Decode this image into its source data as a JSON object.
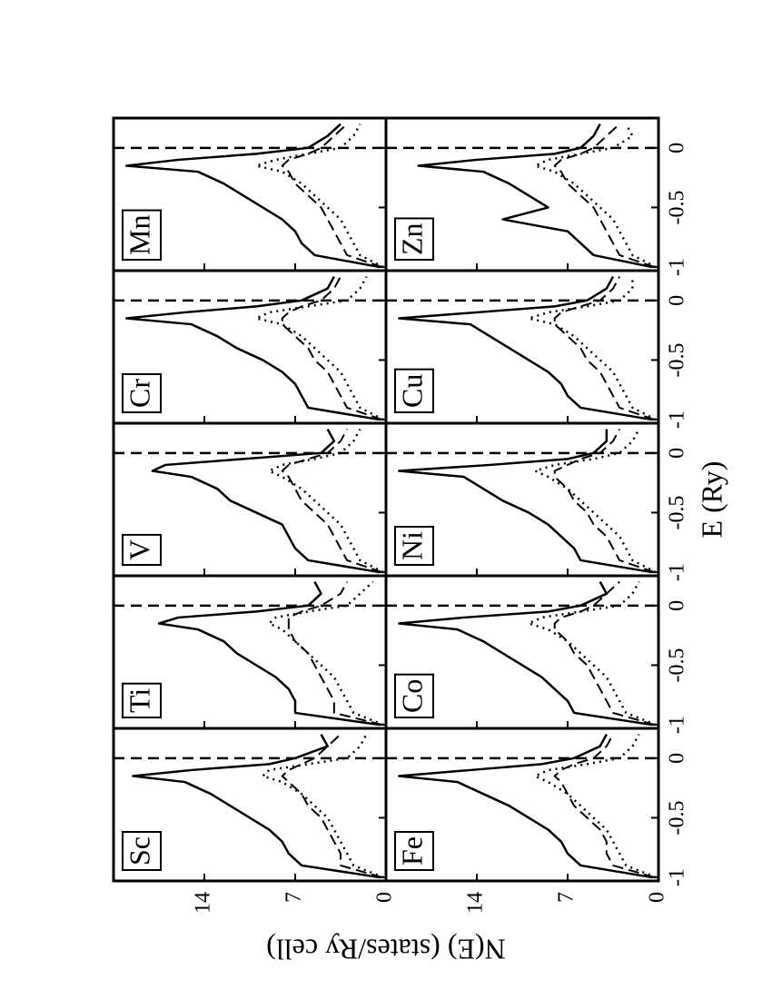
{
  "chart_data": {
    "type": "line",
    "xlabel": "E (Ry)",
    "ylabel": "N(E) (states/Ry cell)",
    "xlim": [
      -1.03,
      0.25
    ],
    "ylim": [
      0,
      21
    ],
    "xticks": [
      -1,
      -0.5,
      0
    ],
    "yticks": [
      0,
      7,
      14
    ],
    "x": [
      -1,
      -0.9,
      -0.8,
      -0.7,
      -0.6,
      -0.5,
      -0.4,
      -0.3,
      -0.2,
      -0.15,
      -0.1,
      -0.05,
      0,
      0.1,
      0.2
    ],
    "panels": [
      {
        "title": "Sc",
        "series": [
          {
            "dash": "solid",
            "color": "#000000",
            "values": [
              0.5,
              6.5,
              7.5,
              8,
              9,
              10.5,
              12,
              13.5,
              15.5,
              19.5,
              15,
              9,
              7,
              4.5,
              5
            ]
          },
          {
            "dash": "dashed",
            "color": "#000000",
            "values": [
              0.3,
              3.5,
              3.5,
              4,
              4.5,
              5,
              6,
              6.5,
              7.5,
              8,
              7.5,
              6.5,
              5.5,
              4.5,
              3.5
            ]
          },
          {
            "dash": "dotted",
            "color": "#000000",
            "values": [
              0.2,
              2.5,
              3,
              3.5,
              4,
              4.5,
              5.5,
              6.5,
              8,
              9.5,
              9,
              6,
              3,
              2,
              1.5
            ]
          }
        ]
      },
      {
        "title": "Ti",
        "series": [
          {
            "dash": "solid",
            "color": "#000000",
            "values": [
              0.5,
              7,
              7,
              7.5,
              8.5,
              10,
              11.5,
              12.5,
              14.5,
              17.5,
              16,
              10,
              6,
              5,
              5.5
            ]
          },
          {
            "dash": "dashed",
            "color": "#000000",
            "values": [
              0.3,
              4,
              4,
              4.5,
              5,
              5.5,
              6,
              7,
              7.5,
              7.5,
              7.5,
              6.5,
              5,
              3.5,
              3
            ]
          },
          {
            "dash": "dotted",
            "color": "#000000",
            "values": [
              0.2,
              2.5,
              3,
              3.5,
              4,
              5,
              6,
              7,
              8,
              9,
              8.5,
              6,
              3,
              2,
              1
            ]
          }
        ]
      },
      {
        "title": "V",
        "series": [
          {
            "dash": "solid",
            "color": "#000000",
            "values": [
              0.5,
              6,
              7,
              7.5,
              8,
              10,
              12,
              13,
              15,
              18,
              17,
              11,
              5,
              4,
              4.5
            ]
          },
          {
            "dash": "dashed",
            "color": "#000000",
            "values": [
              0.3,
              3,
              3.5,
              4,
              4.5,
              5.5,
              6.5,
              7,
              7.5,
              8,
              7.5,
              6,
              4.5,
              3.5,
              3
            ]
          },
          {
            "dash": "dotted",
            "color": "#000000",
            "values": [
              0.2,
              2,
              2.5,
              3,
              3.5,
              4.5,
              5.5,
              6.5,
              8,
              9,
              8,
              5.5,
              3.5,
              2.5,
              2
            ]
          }
        ]
      },
      {
        "title": "Cr",
        "series": [
          {
            "dash": "solid",
            "color": "#000000",
            "values": [
              0.5,
              6,
              6.5,
              7,
              8,
              9.5,
              11.5,
              13,
              15,
              20,
              15.5,
              10,
              6.5,
              4.5,
              4
            ]
          },
          {
            "dash": "dashed",
            "color": "#000000",
            "values": [
              0.3,
              3,
              3.5,
              4,
              4.5,
              5.5,
              6,
              7,
              8,
              8,
              7.5,
              6.5,
              5,
              4,
              3.5
            ]
          },
          {
            "dash": "dotted",
            "color": "#000000",
            "values": [
              0.2,
              2,
              2.5,
              3,
              3.5,
              4.5,
              5.5,
              6.5,
              8,
              10,
              9,
              6,
              3,
              2,
              1.5
            ]
          }
        ]
      },
      {
        "title": "Mn",
        "series": [
          {
            "dash": "solid",
            "color": "#000000",
            "values": [
              0.5,
              5.5,
              6.5,
              7,
              8,
              9.5,
              11,
              12.5,
              14.5,
              20,
              16,
              10,
              6,
              4.5,
              3.5
            ]
          },
          {
            "dash": "dashed",
            "color": "#000000",
            "values": [
              0.3,
              3,
              3.5,
              4,
              4.5,
              5,
              6,
              7,
              7.5,
              8,
              7.5,
              6,
              5,
              4,
              3
            ]
          },
          {
            "dash": "dotted",
            "color": "#000000",
            "values": [
              0.2,
              2,
              2.5,
              3,
              3.5,
              4.5,
              5.5,
              6.5,
              8,
              10,
              8.5,
              6,
              3.5,
              2.5,
              2
            ]
          }
        ]
      },
      {
        "title": "Fe",
        "series": [
          {
            "dash": "solid",
            "color": "#000000",
            "values": [
              0.5,
              6,
              7,
              7.5,
              8.5,
              10,
              11.5,
              13.5,
              15.5,
              20,
              14.5,
              9,
              6.5,
              4.5,
              4
            ]
          },
          {
            "dash": "dashed",
            "color": "#000000",
            "values": [
              0.3,
              3.5,
              4,
              4,
              4.5,
              5.5,
              6.5,
              7,
              7.5,
              8,
              7.5,
              6.5,
              5,
              4,
              3.5
            ]
          },
          {
            "dash": "dotted",
            "color": "#000000",
            "values": [
              0.2,
              2.5,
              3,
              3.5,
              4,
              5,
              6,
              7,
              8.5,
              9.5,
              8.5,
              5.5,
              3,
              2,
              1.5
            ]
          }
        ]
      },
      {
        "title": "Co",
        "series": [
          {
            "dash": "solid",
            "color": "#000000",
            "values": [
              0.5,
              6.5,
              7,
              8,
              9,
              10.5,
              12,
              13.5,
              15.5,
              20,
              15,
              8.5,
              6,
              4,
              4.5
            ]
          },
          {
            "dash": "dashed",
            "color": "#000000",
            "values": [
              0.3,
              3.5,
              4,
              4.5,
              5,
              5.5,
              6.5,
              7,
              8,
              8,
              7.5,
              6,
              5,
              4,
              3
            ]
          },
          {
            "dash": "dotted",
            "color": "#000000",
            "values": [
              0.2,
              2.5,
              3,
              3.5,
              4,
              5,
              6,
              7,
              8.5,
              10,
              9,
              6,
              3,
              2,
              1.5
            ]
          }
        ]
      },
      {
        "title": "Ni",
        "series": [
          {
            "dash": "solid",
            "color": "#000000",
            "values": [
              0.5,
              6,
              6.5,
              7.5,
              8.5,
              10,
              12,
              13.5,
              15,
              20,
              13,
              7,
              5,
              4,
              4
            ]
          },
          {
            "dash": "dashed",
            "color": "#000000",
            "values": [
              0.3,
              3,
              3.5,
              4,
              5,
              5.5,
              6.5,
              7,
              8,
              8,
              7,
              6,
              4.5,
              3.5,
              3
            ]
          },
          {
            "dash": "dotted",
            "color": "#000000",
            "values": [
              0.2,
              2,
              2.5,
              3,
              4,
              5,
              6,
              7,
              8.5,
              9.5,
              8,
              5,
              3,
              2,
              1.5
            ]
          }
        ]
      },
      {
        "title": "Cu",
        "series": [
          {
            "dash": "solid",
            "color": "#000000",
            "values": [
              0.5,
              6,
              7,
              7.5,
              8.5,
              10,
              11.5,
              13,
              14.5,
              20,
              14,
              8,
              5.5,
              4,
              3.5
            ]
          },
          {
            "dash": "dashed",
            "color": "#000000",
            "values": [
              0.3,
              3,
              3.5,
              4,
              4.5,
              5.5,
              6,
              7,
              8,
              8,
              7.5,
              6,
              4.5,
              3.5,
              3
            ]
          },
          {
            "dash": "dotted",
            "color": "#000000",
            "values": [
              0.2,
              2,
              2.5,
              3,
              3.5,
              4.5,
              5.5,
              6.5,
              8,
              10,
              8.5,
              5.5,
              3,
              2,
              2
            ]
          }
        ]
      },
      {
        "title": "Zn",
        "series": [
          {
            "dash": "solid",
            "color": "#000000",
            "values": [
              0.5,
              5,
              6,
              7,
              12,
              8.5,
              10,
              11.5,
              13.5,
              18.5,
              14,
              8,
              6,
              5,
              4.5
            ]
          },
          {
            "dash": "dashed",
            "color": "#000000",
            "values": [
              0.3,
              3,
              3.5,
              4,
              4.5,
              5,
              6,
              7,
              7.5,
              8,
              7.5,
              6,
              5,
              4,
              3
            ]
          },
          {
            "dash": "dotted",
            "color": "#000000",
            "values": [
              0.2,
              2,
              2.5,
              3,
              3.5,
              4.5,
              5.5,
              6.5,
              8,
              9.5,
              8.5,
              6,
              3.5,
              2,
              2.5
            ]
          }
        ]
      }
    ]
  }
}
